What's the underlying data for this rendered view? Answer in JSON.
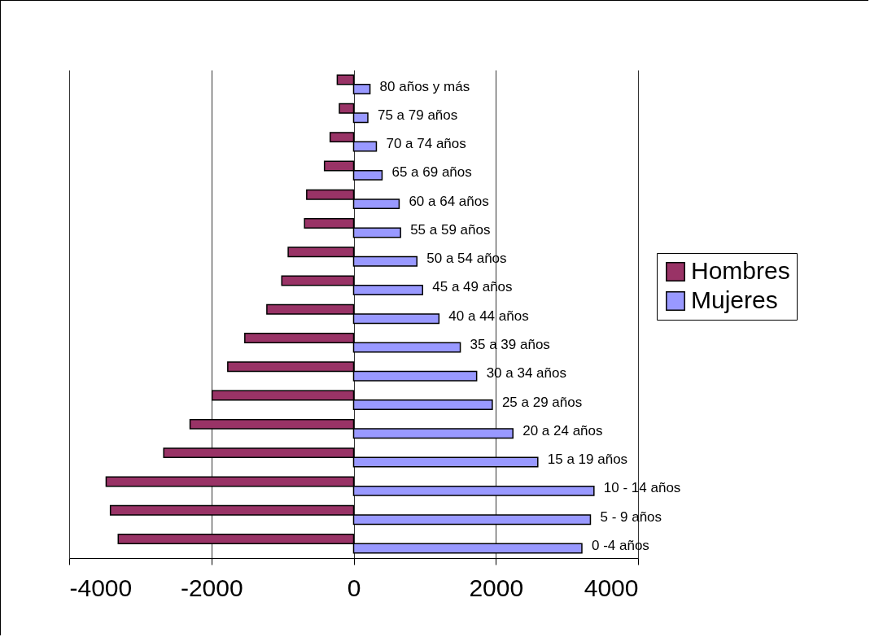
{
  "chart_data": {
    "type": "bar",
    "orientation": "horizontal",
    "categories": [
      "80 años y más",
      "75 a 79 años",
      "70 a 74 años",
      "65 a 69 años",
      "60 a 64 años",
      "55 a 59 años",
      "50 a 54 años",
      "45 a 49 años",
      "40 a 44 años",
      "35 a 39 años",
      "30 a 34 años",
      "25 a 29 años",
      "20 a 24 años",
      "15 a 19 años",
      "10 - 14 años",
      "5 - 9 años",
      "0 -4 años"
    ],
    "series": [
      {
        "name": "Hombres",
        "color": "#993366",
        "values": [
          -230,
          -200,
          -330,
          -410,
          -660,
          -690,
          -920,
          -1010,
          -1220,
          -1530,
          -1770,
          -1990,
          -2300,
          -2670,
          -3480,
          -3420,
          -3310
        ]
      },
      {
        "name": "Mujeres",
        "color": "#9999ff",
        "values": [
          230,
          200,
          320,
          400,
          640,
          660,
          890,
          970,
          1200,
          1500,
          1730,
          1950,
          2240,
          2590,
          3380,
          3330,
          3210
        ]
      }
    ],
    "xlim": [
      -4000,
      4000
    ],
    "xticks": [
      -4000,
      -2000,
      0,
      2000,
      4000
    ],
    "grid": "x",
    "legend": "right",
    "tick_labels": "x"
  }
}
